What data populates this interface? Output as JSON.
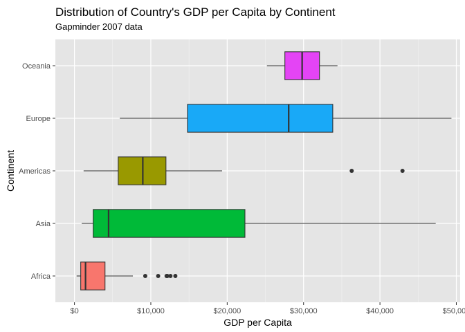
{
  "chart_data": {
    "type": "boxplot",
    "title": "Distribution of Country's GDP per Capita by Continent",
    "subtitle": "Gapminder 2007 data",
    "xlabel": "GDP per Capita",
    "ylabel": "Continent",
    "xlim": [
      -2500,
      50500
    ],
    "x_ticks": [
      0,
      10000,
      20000,
      30000,
      40000,
      50000
    ],
    "x_tick_labels": [
      "$0",
      "$10,000",
      "$20,000",
      "$30,000",
      "$40,000",
      "$50,000"
    ],
    "categories": [
      "Africa",
      "Asia",
      "Americas",
      "Europe",
      "Oceania"
    ],
    "grid": true,
    "legend": "none",
    "boxes": [
      {
        "category": "Africa",
        "whisker_low": 280,
        "q1": 820,
        "median": 1450,
        "q3": 4000,
        "whisker_high": 7650,
        "outliers": [
          9270,
          10960,
          12060,
          12160,
          12570,
          13210
        ],
        "color": "#F8766D"
      },
      {
        "category": "Asia",
        "whisker_low": 950,
        "q1": 2450,
        "median": 4470,
        "q3": 22320,
        "whisker_high": 47300,
        "outliers": [],
        "color": "#00BA38"
      },
      {
        "category": "Americas",
        "whisker_low": 1200,
        "q1": 5730,
        "median": 8950,
        "q3": 11980,
        "whisker_high": 19330,
        "outliers": [
          36300,
          42950
        ],
        "color": "#999900"
      },
      {
        "category": "Europe",
        "whisker_low": 5940,
        "q1": 14800,
        "median": 28050,
        "q3": 33820,
        "whisker_high": 49360,
        "outliers": [],
        "color": "#19A9F7"
      },
      {
        "category": "Oceania",
        "whisker_low": 25200,
        "q1": 27550,
        "median": 29810,
        "q3": 32080,
        "whisker_high": 34440,
        "outliers": [],
        "color": "#E444F5"
      }
    ]
  }
}
